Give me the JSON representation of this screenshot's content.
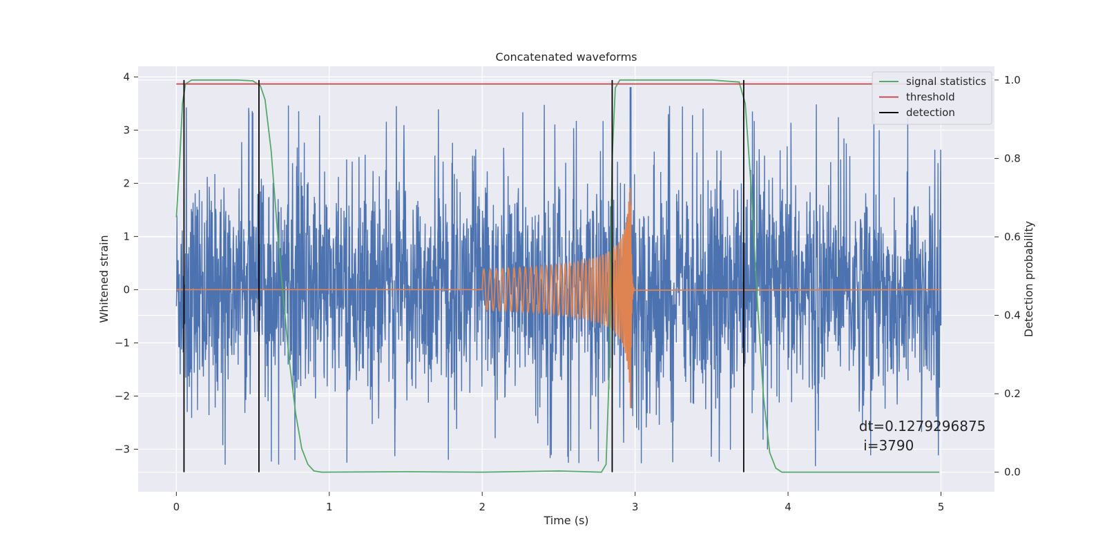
{
  "chart_data": {
    "type": "line",
    "title": "Concatenated waveforms",
    "xlabel": "Time (s)",
    "ylabel": "Whitened strain",
    "y2label": "Detection probability",
    "xlim": [
      -0.25,
      5.35
    ],
    "ylim": [
      -3.8,
      4.2
    ],
    "y2lim": [
      -0.05,
      1.035
    ],
    "xticks": [
      0,
      1,
      2,
      3,
      4,
      5
    ],
    "yticks": [
      -3,
      -2,
      -1,
      0,
      1,
      2,
      3,
      4
    ],
    "y2ticks": [
      0.0,
      0.2,
      0.4,
      0.6,
      0.8,
      1.0
    ],
    "y2tick_labels": [
      "0.0",
      "0.2",
      "0.4",
      "0.6",
      "0.8",
      "1.0"
    ],
    "grid": true,
    "legend_position": "upper right",
    "colors": {
      "strain": "#4c72b0",
      "injection": "#dd8452",
      "statistic": "#55a868",
      "threshold": "#c44e52",
      "detection": "#000000",
      "background": "#eaeaf2"
    },
    "series": [
      {
        "kind": "noise",
        "axis": "left",
        "x_range": [
          0,
          5
        ],
        "amplitude_range": [
          -3.4,
          3.5
        ],
        "typical_spread": 1.0,
        "peak_near_merger": 3.8
      },
      {
        "kind": "chirp",
        "axis": "left",
        "x_start": 2.0,
        "x_merger": 2.97,
        "x_end": 5.0,
        "amplitude_start": 0.2,
        "amplitude_peak": 2.3,
        "amplitude_min": -2.3
      },
      {
        "name": "signal statistics",
        "kind": "statistic",
        "axis": "right",
        "points": [
          [
            0,
            0.65
          ],
          [
            0.02,
            0.78
          ],
          [
            0.04,
            0.94
          ],
          [
            0.06,
            0.99
          ],
          [
            0.1,
            1.0
          ],
          [
            0.4,
            1.0
          ],
          [
            0.5,
            0.998
          ],
          [
            0.55,
            0.985
          ],
          [
            0.58,
            0.95
          ],
          [
            0.62,
            0.82
          ],
          [
            0.66,
            0.62
          ],
          [
            0.7,
            0.44
          ],
          [
            0.74,
            0.28
          ],
          [
            0.78,
            0.15
          ],
          [
            0.82,
            0.06
          ],
          [
            0.86,
            0.02
          ],
          [
            0.9,
            0.003
          ],
          [
            0.95,
            0.0
          ],
          [
            1.5,
            0.001
          ],
          [
            2.0,
            0.0
          ],
          [
            2.5,
            0.003
          ],
          [
            2.78,
            0.0
          ],
          [
            2.81,
            0.02
          ],
          [
            2.83,
            0.25
          ],
          [
            2.85,
            0.8
          ],
          [
            2.87,
            0.98
          ],
          [
            2.9,
            1.0
          ],
          [
            3.5,
            1.0
          ],
          [
            3.68,
            0.995
          ],
          [
            3.72,
            0.94
          ],
          [
            3.76,
            0.72
          ],
          [
            3.8,
            0.43
          ],
          [
            3.84,
            0.19
          ],
          [
            3.88,
            0.05
          ],
          [
            3.92,
            0.01
          ],
          [
            3.96,
            0.0
          ],
          [
            4.99,
            0.0
          ]
        ]
      },
      {
        "name": "threshold",
        "kind": "threshold",
        "axis": "right",
        "x_range": [
          0,
          5
        ],
        "value": 0.99
      },
      {
        "name": "detection",
        "kind": "detection",
        "axis": "right",
        "x": [
          0.05,
          0.54,
          2.85,
          3.71
        ],
        "range": [
          0,
          1.0
        ]
      }
    ],
    "annotation": {
      "line1": "dt=0.1279296875",
      "line2": " i=3790",
      "x": 4.5,
      "y": -2.75
    }
  }
}
